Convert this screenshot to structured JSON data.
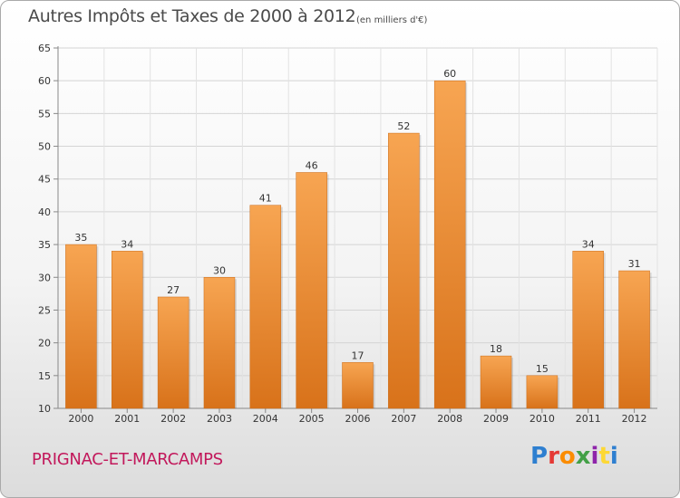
{
  "chart_data": {
    "type": "bar",
    "title": "Autres Impôts et Taxes de 2000 à 2012",
    "subtitle": "(en milliers d'€)",
    "categories": [
      "2000",
      "2001",
      "2002",
      "2003",
      "2004",
      "2005",
      "2006",
      "2007",
      "2008",
      "2009",
      "2010",
      "2011",
      "2012"
    ],
    "values": [
      35,
      34,
      27,
      30,
      41,
      46,
      17,
      52,
      60,
      18,
      15,
      34,
      31
    ],
    "ylim": [
      10,
      65
    ],
    "yticks": [
      10,
      15,
      20,
      25,
      30,
      35,
      40,
      45,
      50,
      55,
      60,
      65
    ],
    "grid": true,
    "bar_color_top": "#f7a552",
    "bar_color_bottom": "#d8721a"
  },
  "commune": "PRIGNAC-ET-MARCAMPS",
  "logo": {
    "text": "Proxiti",
    "p1": "Pro",
    "p2": "x",
    "p3": "iti"
  }
}
